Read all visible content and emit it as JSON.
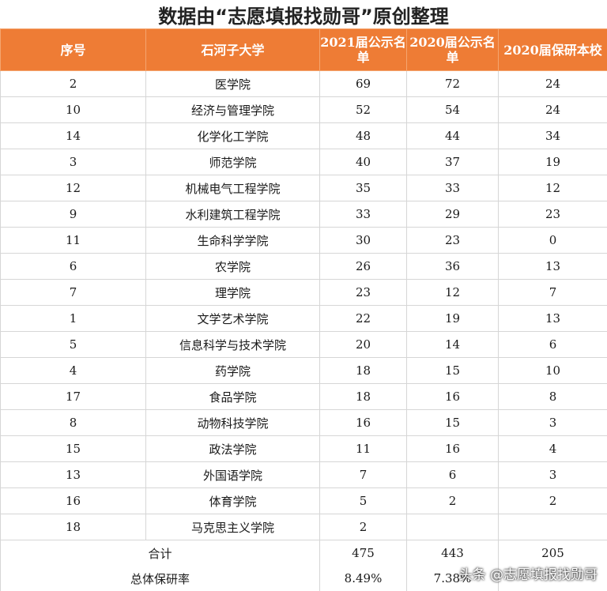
{
  "title": "数据由“志愿填报找勋哥”原创整理",
  "headers": [
    "序号",
    "石河子大学",
    "2021届公示名单",
    "2020届公示名单",
    "2020届保研本校"
  ],
  "rows": [
    [
      "2",
      "医学院",
      "69",
      "72",
      "24"
    ],
    [
      "10",
      "经济与管理学院",
      "52",
      "54",
      "24"
    ],
    [
      "14",
      "化学化工学院",
      "48",
      "44",
      "34"
    ],
    [
      "3",
      "师范学院",
      "40",
      "37",
      "19"
    ],
    [
      "12",
      "机械电气工程学院",
      "35",
      "33",
      "12"
    ],
    [
      "9",
      "水利建筑工程学院",
      "33",
      "29",
      "23"
    ],
    [
      "11",
      "生命科学学院",
      "30",
      "23",
      "0"
    ],
    [
      "6",
      "农学院",
      "26",
      "36",
      "13"
    ],
    [
      "7",
      "理学院",
      "23",
      "12",
      "7"
    ],
    [
      "1",
      "文学艺术学院",
      "22",
      "19",
      "13"
    ],
    [
      "5",
      "信息科学与技术学院",
      "20",
      "14",
      "6"
    ],
    [
      "4",
      "药学院",
      "18",
      "15",
      "10"
    ],
    [
      "17",
      "食品学院",
      "18",
      "16",
      "8"
    ],
    [
      "8",
      "动物科技学院",
      "16",
      "15",
      "3"
    ],
    [
      "15",
      "政法学院",
      "11",
      "16",
      "4"
    ],
    [
      "13",
      "外国语学院",
      "7",
      "6",
      "3"
    ],
    [
      "16",
      "体育学院",
      "5",
      "2",
      "2"
    ],
    [
      "18",
      "马克思主义学院",
      "2",
      "",
      ""
    ]
  ],
  "total": {
    "label": "合计",
    "values": [
      "475",
      "443",
      "205"
    ]
  },
  "rate": {
    "label": "总体保研率",
    "values": [
      "8.49%",
      "7.38%"
    ]
  },
  "watermark": "头条 @志愿填报找勋哥"
}
